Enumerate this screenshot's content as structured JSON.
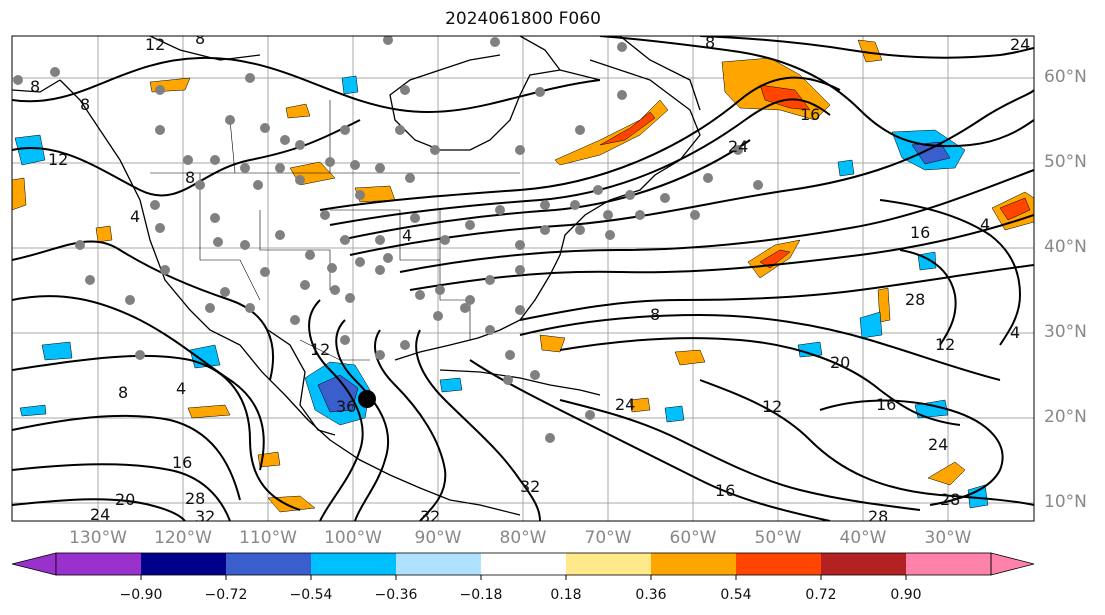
{
  "title": "2024061800 F060",
  "latitude_labels": [
    "60°N",
    "50°N",
    "40°N",
    "30°N",
    "20°N",
    "10°N"
  ],
  "longitude_labels": [
    "130°W",
    "120°W",
    "110°W",
    "100°W",
    "90°W",
    "80°W",
    "70°W",
    "60°W",
    "50°W",
    "40°W",
    "30°W"
  ],
  "contour_labels": [
    "12",
    "8",
    "8",
    "8",
    "12",
    "4",
    "8",
    "4",
    "24",
    "8",
    "16",
    "24",
    "4",
    "8",
    "28",
    "12",
    "8",
    "4",
    "36",
    "16",
    "20",
    "28",
    "32",
    "24",
    "16",
    "32",
    "20",
    "24",
    "12",
    "16",
    "24",
    "28",
    "12",
    "4",
    "16",
    "28",
    "32"
  ],
  "colorbar": {
    "tick_labels": [
      "−0.90",
      "−0.72",
      "−0.54",
      "−0.36",
      "−0.18",
      "0.18",
      "0.36",
      "0.54",
      "0.72",
      "0.90"
    ],
    "colors": [
      "#9932cc",
      "#00008b",
      "#3a5fcd",
      "#00bfff",
      "#b0e2ff",
      "#ffffff",
      "#ffe98a",
      "#ffa500",
      "#ff4500",
      "#b22222",
      "#ff82ab"
    ]
  },
  "colors": {
    "positive_fill": "#ffa500",
    "positive_strong": "#ff4500",
    "negative_fill": "#00bfff",
    "negative_strong": "#3a5fcd",
    "station_dot": "#808080",
    "marker": "#000000",
    "grid": "#aaaaaa",
    "label_gray": "#888888"
  }
}
